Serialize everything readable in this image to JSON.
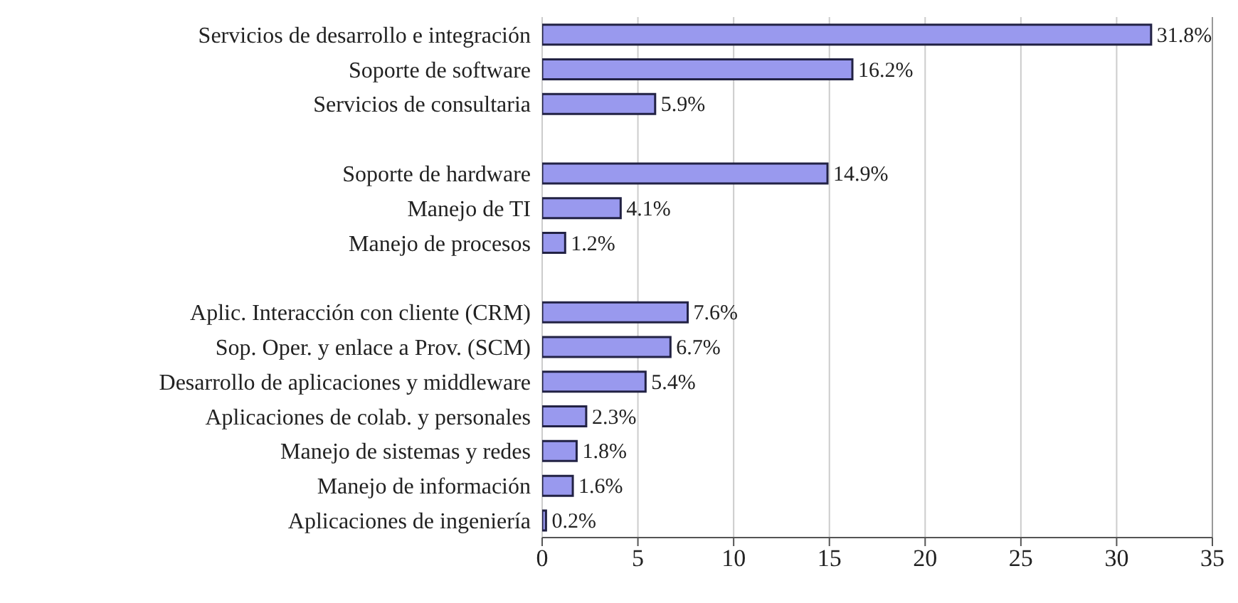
{
  "chart_data": {
    "type": "bar",
    "orientation": "horizontal",
    "categories": [
      "Servicios de desarrollo e  integración",
      "Soporte de software",
      "Servicios de consultaria",
      null,
      "Soporte de hardware",
      "Manejo de TI",
      "Manejo de procesos",
      null,
      "Aplic. Interacción con cliente (CRM)",
      "Sop. Oper. y enlace a Prov. (SCM)",
      "Desarrollo de aplicaciones y middleware",
      "Aplicaciones de colab. y personales",
      "Manejo de sistemas y redes",
      "Manejo de información",
      "Aplicaciones de ingeniería"
    ],
    "values": [
      31.8,
      16.2,
      5.9,
      null,
      14.9,
      4.1,
      1.2,
      null,
      7.6,
      6.7,
      5.4,
      2.3,
      1.8,
      1.6,
      0.2
    ],
    "value_labels": [
      "31.8%",
      "16.2%",
      "5.9%",
      null,
      "14.9%",
      "4.1%",
      "1.2%",
      null,
      "7.6%",
      "6.7%",
      "5.4%",
      "2.3%",
      "1.8%",
      "1.6%",
      "0.2%"
    ],
    "color": "#9999ee",
    "xlim": [
      0,
      35
    ],
    "xticks": [
      0,
      5,
      10,
      15,
      20,
      25,
      30,
      35
    ],
    "grid": "x"
  }
}
